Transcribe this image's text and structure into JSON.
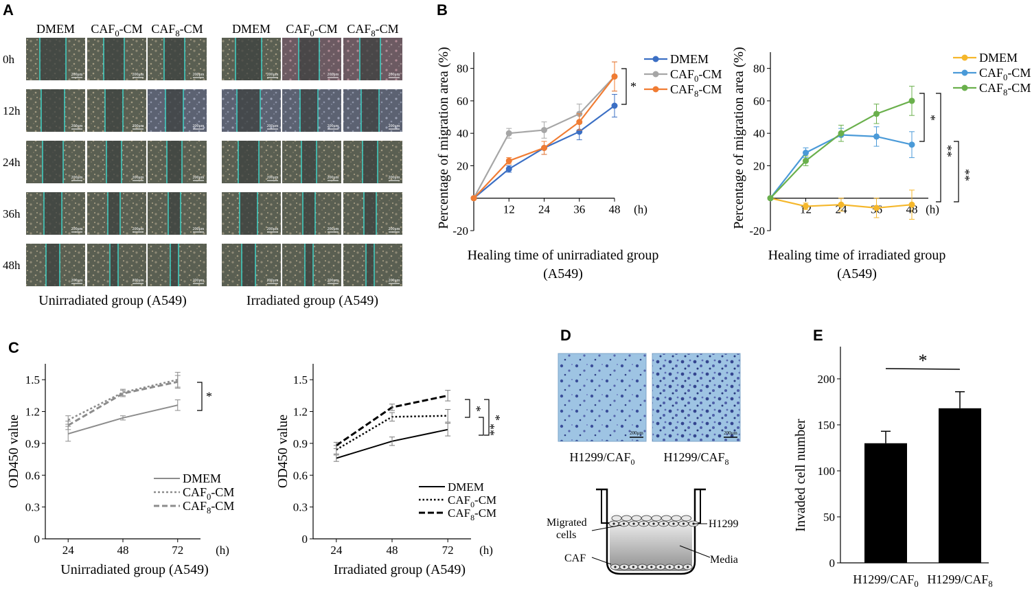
{
  "panels": {
    "a": "A",
    "b": "B",
    "c": "C",
    "d": "D",
    "e": "E"
  },
  "micro": {
    "cols": [
      "DMEM",
      "CAF0-CM",
      "CAF8-CM",
      "DMEM",
      "CAF0-CM",
      "CAF8-CM"
    ],
    "rows": [
      "0h",
      "12h",
      "24h",
      "36h",
      "48h"
    ],
    "scale": "200μm",
    "groups": [
      "Unirradiated group (A549)",
      "Irradiated group (A549)"
    ]
  },
  "colors": {
    "dmem_b": "#3b6fc4",
    "caf0_b": "#a6a6a6",
    "caf8_b": "#f07c33",
    "dmem_b2": "#f5b72b",
    "caf0_b2": "#4a9ad8",
    "caf8_b2": "#6ab04c",
    "line": "#000000",
    "grey": "#8c8c8c"
  },
  "chart_data": [
    {
      "id": "B-left",
      "type": "line",
      "xlabel": "Healing time of unirradiated group",
      "xlabel2": "(A549)",
      "ylabel": "Percentage of migration area (%)",
      "x": [
        0,
        12,
        24,
        36,
        48
      ],
      "xunit": "(h)",
      "yticks": [
        80,
        60,
        40,
        20,
        -20
      ],
      "ylim": [
        -20,
        90
      ],
      "series": [
        {
          "name": "DMEM",
          "values": [
            0,
            18,
            31,
            41,
            57
          ],
          "err": [
            0,
            2,
            4,
            5,
            7
          ]
        },
        {
          "name": "CAF0-CM",
          "values": [
            0,
            40,
            42,
            52,
            75
          ],
          "err": [
            0,
            3,
            5,
            6,
            9
          ]
        },
        {
          "name": "CAF8-CM",
          "values": [
            0,
            23,
            31,
            47,
            75
          ],
          "err": [
            0,
            2,
            4,
            5,
            9
          ]
        }
      ],
      "sig": [
        "*"
      ]
    },
    {
      "id": "B-right",
      "type": "line",
      "xlabel": "Healing time of irradiated group",
      "xlabel2": "(A549)",
      "ylabel": "Percentage of migration area (%)",
      "x": [
        0,
        12,
        24,
        36,
        48
      ],
      "xunit": "(h)",
      "yticks": [
        80,
        60,
        40,
        20,
        -20
      ],
      "ylim": [
        -20,
        90
      ],
      "series": [
        {
          "name": "DMEM",
          "values": [
            0,
            -5,
            -4,
            -6,
            -4
          ],
          "err": [
            0,
            2,
            4,
            6,
            9
          ]
        },
        {
          "name": "CAF0-CM",
          "values": [
            0,
            28,
            39,
            38,
            33
          ],
          "err": [
            0,
            3,
            4,
            6,
            8
          ]
        },
        {
          "name": "CAF8-CM",
          "values": [
            0,
            23,
            40,
            52,
            60
          ],
          "err": [
            0,
            3,
            5,
            6,
            9
          ]
        }
      ],
      "sig": [
        "*",
        "**",
        "**"
      ]
    },
    {
      "id": "C-left",
      "type": "line",
      "xlabel": "Unirradiated group (A549)",
      "ylabel": "OD450 value",
      "x": [
        24,
        48,
        72
      ],
      "xunit": "(h)",
      "yticks": [
        "1.5",
        "1.2",
        "0.9",
        "0.6",
        "0.3",
        "0"
      ],
      "ylim": [
        0,
        1.65
      ],
      "series": [
        {
          "name": "DMEM",
          "values": [
            0.99,
            1.14,
            1.26
          ],
          "err": [
            0.07,
            0.02,
            0.05
          ]
        },
        {
          "name": "CAF0-CM",
          "values": [
            1.12,
            1.38,
            1.5
          ],
          "err": [
            0.04,
            0.03,
            0.07
          ]
        },
        {
          "name": "CAF8-CM",
          "values": [
            1.07,
            1.37,
            1.48
          ],
          "err": [
            0.04,
            0.03,
            0.06
          ]
        }
      ],
      "sig": [
        "*"
      ]
    },
    {
      "id": "C-right",
      "type": "line",
      "xlabel": "Irradiated group (A549)",
      "ylabel": "OD450 value",
      "x": [
        24,
        48,
        72
      ],
      "xunit": "(h)",
      "yticks": [
        "1.5",
        "1.2",
        "0.9",
        "0.6",
        "0.3",
        "0"
      ],
      "ylim": [
        0,
        1.65
      ],
      "series": [
        {
          "name": "DMEM",
          "values": [
            0.76,
            0.92,
            1.03
          ],
          "err": [
            0.03,
            0.04,
            0.06
          ]
        },
        {
          "name": "CAF0-CM",
          "values": [
            0.84,
            1.15,
            1.16
          ],
          "err": [
            0.04,
            0.04,
            0.06
          ]
        },
        {
          "name": "CAF8-CM",
          "values": [
            0.88,
            1.24,
            1.35
          ],
          "err": [
            0.03,
            0.03,
            0.05
          ]
        }
      ],
      "sig": [
        "*",
        "*",
        "**"
      ]
    },
    {
      "id": "E",
      "type": "bar",
      "ylabel": "Invaded cell number",
      "categories": [
        "H1299/CAF0",
        "H1299/CAF8"
      ],
      "values": [
        130,
        168
      ],
      "err": [
        13,
        18
      ],
      "yticks": [
        200,
        150,
        100,
        50,
        0
      ],
      "ylim": [
        0,
        235
      ],
      "sig": [
        "*"
      ]
    }
  ],
  "transwell": {
    "images": [
      "H1299/CAF0",
      "H1299/CAF8"
    ],
    "labels": {
      "migrated": "Migrated",
      "cells": "cells",
      "h1299": "H1299",
      "caf": "CAF",
      "media": "Media"
    }
  }
}
